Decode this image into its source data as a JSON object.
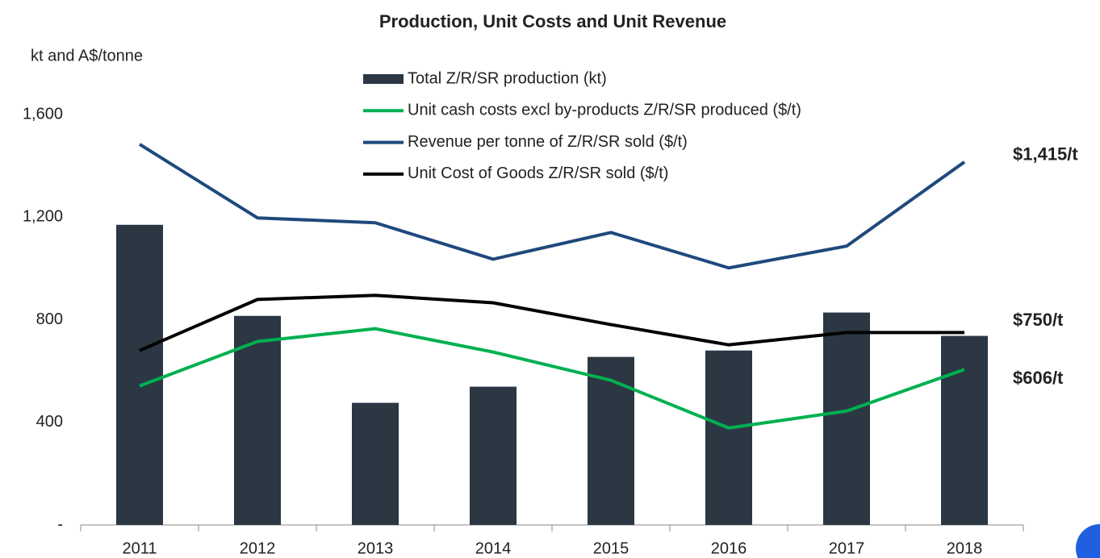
{
  "chart_data": {
    "type": "combo",
    "title": "Production, Unit Costs and Unit Revenue",
    "y_label": "kt and A$/tonne",
    "categories": [
      "2011",
      "2012",
      "2013",
      "2014",
      "2015",
      "2016",
      "2017",
      "2018"
    ],
    "series": [
      {
        "name": "Total Z/R/SR production (kt)",
        "type": "bar",
        "color": "#2b3743",
        "values": [
          1170,
          815,
          476,
          539,
          655,
          680,
          828,
          737
        ]
      },
      {
        "name": "Unit cash costs excl by-products Z/R/SR produced ($/t)",
        "type": "line",
        "color": "#00b050",
        "values": [
          542,
          715,
          765,
          674,
          564,
          378,
          444,
          606
        ],
        "value_labels": [
          null,
          null,
          null,
          null,
          null,
          null,
          null,
          "$606/t"
        ]
      },
      {
        "name": "Revenue per tonne of Z/R/SR sold ($/t)",
        "type": "line",
        "color": "#1f497d",
        "values": [
          1484,
          1197,
          1178,
          1036,
          1140,
          1002,
          1087,
          1415
        ],
        "value_labels": [
          null,
          null,
          null,
          null,
          null,
          null,
          null,
          "$1,415/t"
        ]
      },
      {
        "name": "Unit Cost of Goods Z/R/SR sold ($/t)",
        "type": "line",
        "color": "#000000",
        "values": [
          680,
          879,
          895,
          866,
          781,
          702,
          750,
          750
        ],
        "value_labels": [
          null,
          null,
          null,
          null,
          null,
          null,
          null,
          "$750/t"
        ]
      }
    ],
    "ylim": [
      0,
      1600
    ],
    "yticks": [
      {
        "value": 0,
        "label": "-"
      },
      400,
      800,
      {
        "value": 1200,
        "label": "1,200"
      },
      {
        "value": 1600,
        "label": "1,600"
      }
    ],
    "grid": false,
    "legend": "top"
  }
}
